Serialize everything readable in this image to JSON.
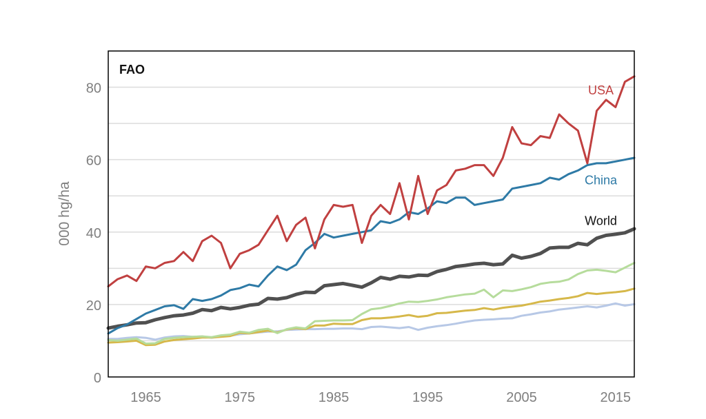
{
  "chart_data": {
    "type": "line",
    "title": "FAO",
    "xlabel": "",
    "ylabel": "000 hg/ha",
    "xlim": [
      1961,
      2017
    ],
    "ylim": [
      0,
      90
    ],
    "xticks": [
      1965,
      1975,
      1985,
      1995,
      2005,
      2015
    ],
    "yticks": [
      0,
      20,
      40,
      60,
      80
    ],
    "grid": true,
    "x": [
      1961,
      1962,
      1963,
      1964,
      1965,
      1966,
      1967,
      1968,
      1969,
      1970,
      1971,
      1972,
      1973,
      1974,
      1975,
      1976,
      1977,
      1978,
      1979,
      1980,
      1981,
      1982,
      1983,
      1984,
      1985,
      1986,
      1987,
      1988,
      1989,
      1990,
      1991,
      1992,
      1993,
      1994,
      1995,
      1996,
      1997,
      1998,
      1999,
      2000,
      2001,
      2002,
      2003,
      2004,
      2005,
      2006,
      2007,
      2008,
      2009,
      2010,
      2011,
      2012,
      2013,
      2014,
      2015,
      2016,
      2017
    ],
    "series": [
      {
        "name": "Light blue",
        "label": "",
        "color": "#b7c8e6",
        "width": 3,
        "values": [
          10.5,
          10.5,
          10.8,
          11.0,
          10.8,
          10.3,
          10.9,
          11.2,
          11.3,
          11.1,
          11.2,
          10.8,
          11.2,
          11.4,
          11.8,
          12.0,
          12.3,
          12.5,
          12.6,
          13.0,
          13.1,
          13.2,
          13.2,
          13.3,
          13.3,
          13.4,
          13.4,
          13.2,
          13.8,
          13.9,
          13.7,
          13.5,
          13.8,
          13.0,
          13.6,
          14.0,
          14.3,
          14.7,
          15.2,
          15.6,
          15.8,
          15.9,
          16.1,
          16.2,
          16.9,
          17.3,
          17.8,
          18.1,
          18.6,
          18.9,
          19.2,
          19.5,
          19.2,
          19.7,
          20.3,
          19.7,
          20.1
        ]
      },
      {
        "name": "Gold",
        "label": "",
        "color": "#d6b84a",
        "width": 3,
        "values": [
          9.5,
          9.6,
          9.8,
          10.0,
          8.8,
          8.9,
          9.8,
          10.2,
          10.4,
          10.6,
          10.9,
          10.9,
          11.1,
          11.3,
          12.2,
          12.0,
          12.4,
          12.8,
          12.3,
          13.1,
          13.5,
          13.2,
          14.2,
          14.2,
          14.7,
          14.6,
          14.6,
          15.7,
          16.2,
          16.2,
          16.4,
          16.7,
          17.1,
          16.6,
          16.9,
          17.6,
          17.7,
          18.0,
          18.3,
          18.5,
          19.0,
          18.6,
          19.1,
          19.4,
          19.7,
          20.2,
          20.8,
          21.1,
          21.5,
          21.8,
          22.3,
          23.2,
          22.9,
          23.2,
          23.4,
          23.7,
          24.4
        ]
      },
      {
        "name": "Light green",
        "label": "",
        "color": "#b6dc9c",
        "width": 3,
        "values": [
          10.2,
          10.0,
          10.3,
          10.6,
          9.2,
          9.3,
          10.5,
          10.8,
          11.0,
          11.1,
          11.2,
          11.0,
          11.5,
          11.7,
          12.5,
          12.2,
          13.0,
          13.3,
          12.1,
          13.2,
          13.7,
          13.4,
          15.4,
          15.5,
          15.6,
          15.6,
          15.7,
          17.4,
          18.7,
          19.0,
          19.6,
          20.3,
          20.8,
          20.7,
          21.0,
          21.4,
          22.0,
          22.4,
          22.8,
          23.0,
          24.1,
          22.0,
          23.9,
          23.7,
          24.2,
          24.8,
          25.7,
          26.1,
          26.3,
          26.9,
          28.4,
          29.4,
          29.6,
          29.3,
          28.9,
          30.2,
          31.5
        ]
      },
      {
        "name": "World",
        "label": "World",
        "color": "#505050",
        "width": 5,
        "values": [
          13.5,
          14.0,
          14.4,
          14.9,
          15.0,
          15.8,
          16.4,
          16.9,
          17.1,
          17.6,
          18.6,
          18.3,
          19.2,
          18.8,
          19.2,
          19.8,
          20.1,
          21.7,
          21.5,
          21.9,
          22.8,
          23.4,
          23.3,
          25.2,
          25.5,
          25.8,
          25.3,
          24.8,
          26.0,
          27.5,
          27.0,
          27.8,
          27.6,
          28.1,
          28.0,
          29.1,
          29.7,
          30.5,
          30.8,
          31.2,
          31.4,
          31.0,
          31.2,
          33.6,
          32.8,
          33.3,
          34.1,
          35.6,
          35.8,
          35.8,
          36.9,
          36.5,
          38.3,
          39.1,
          39.4,
          39.8,
          40.9
        ]
      },
      {
        "name": "China",
        "label": "China",
        "color": "#2e7aa6",
        "width": 3,
        "values": [
          12.0,
          13.5,
          14.5,
          16.0,
          17.5,
          18.5,
          19.5,
          19.8,
          18.8,
          21.5,
          21.0,
          21.5,
          22.5,
          24.0,
          24.5,
          25.5,
          25.0,
          28.0,
          30.5,
          29.5,
          31.0,
          35.0,
          37.0,
          39.5,
          38.5,
          39.0,
          39.5,
          40.0,
          40.5,
          43.0,
          42.5,
          43.5,
          45.5,
          45.0,
          46.5,
          48.5,
          48.0,
          49.5,
          49.5,
          47.5,
          48.0,
          48.5,
          49.0,
          52.0,
          52.5,
          53.0,
          53.5,
          55.0,
          54.5,
          56.0,
          57.0,
          58.5,
          59.0,
          59.0,
          59.5,
          60.0,
          60.5
        ]
      },
      {
        "name": "USA",
        "label": "USA",
        "color": "#c04040",
        "width": 3,
        "values": [
          25.0,
          27.0,
          28.0,
          26.5,
          30.5,
          30.0,
          31.5,
          32.0,
          34.5,
          32.0,
          37.5,
          39.0,
          37.0,
          30.0,
          34.0,
          35.0,
          36.5,
          40.5,
          44.5,
          37.5,
          42.0,
          44.0,
          35.5,
          43.5,
          47.5,
          47.0,
          47.5,
          37.0,
          44.5,
          47.5,
          45.0,
          53.5,
          43.5,
          55.5,
          45.0,
          51.5,
          53.0,
          57.0,
          57.5,
          58.5,
          58.5,
          55.5,
          60.5,
          69.0,
          64.5,
          64.0,
          66.5,
          66.0,
          72.5,
          70.0,
          68.0,
          59.0,
          73.5,
          76.5,
          74.5,
          81.5,
          83.0
        ]
      }
    ]
  }
}
